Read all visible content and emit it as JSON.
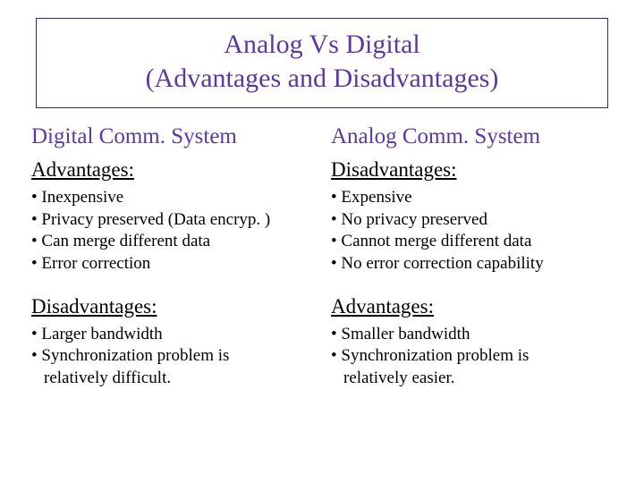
{
  "title": {
    "line1": "Analog Vs Digital",
    "line2": "(Advantages and Disadvantages)"
  },
  "colors": {
    "heading_color": "#5a3aa0",
    "border_color": "#2a2a6a",
    "body_text": "#000000",
    "background": "#ffffff"
  },
  "typography": {
    "title_fontsize": 30,
    "col_heading_fontsize": 25,
    "sub_heading_fontsize": 23,
    "bullet_fontsize": 19,
    "font_family": "Times New Roman"
  },
  "left": {
    "heading": "Digital Comm. System",
    "section1": {
      "label": "Advantages:",
      "items": [
        "• Inexpensive",
        "• Privacy preserved (Data encryp. )",
        "• Can merge different data",
        "• Error correction"
      ]
    },
    "section2": {
      "label": "Disadvantages:",
      "items": [
        "• Larger bandwidth",
        "• Synchronization problem is",
        "relatively difficult."
      ]
    }
  },
  "right": {
    "heading": "Analog Comm. System",
    "section1": {
      "label": "Disadvantages:",
      "items": [
        "• Expensive",
        "• No privacy preserved",
        "• Cannot merge different data",
        "• No error correction capability"
      ]
    },
    "section2": {
      "label": "Advantages:",
      "items": [
        "• Smaller bandwidth",
        "• Synchronization problem is",
        "relatively easier."
      ]
    }
  }
}
